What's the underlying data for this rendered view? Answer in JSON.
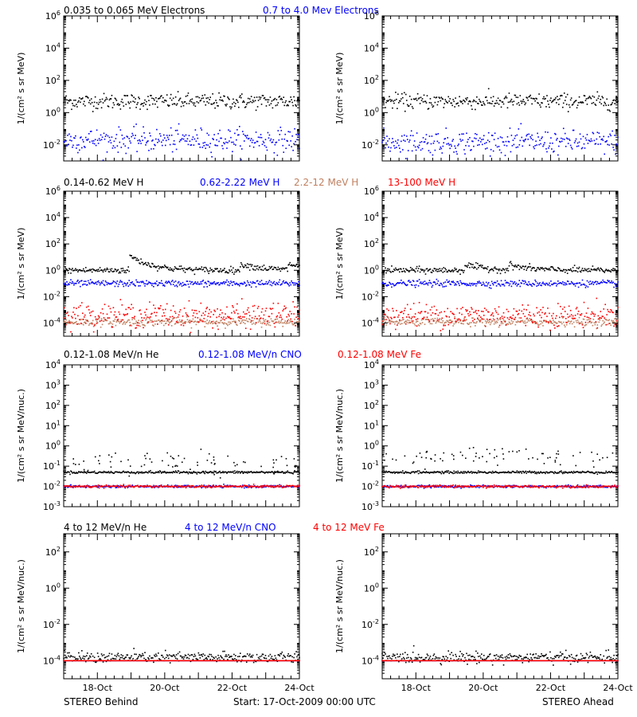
{
  "colors": {
    "black": "#000000",
    "blue": "#0000ff",
    "red": "#ff0000",
    "brown": "#c08060"
  },
  "footer": {
    "left": "STEREO Behind",
    "center": "Start: 17-Oct-2009 00:00 UTC",
    "right": "STEREO Ahead"
  },
  "x_axis": {
    "range_days": [
      0,
      7
    ],
    "tick_labels": [
      "18-Oct",
      "20-Oct",
      "22-Oct",
      "24-Oct"
    ],
    "tick_days": [
      1,
      3,
      5,
      7
    ]
  },
  "rows": [
    {
      "ylabel": "1/(cm² s sr MeV)",
      "title_segments": [
        {
          "text": "0.035 to 0.065 MeV Electrons",
          "color": "#000000"
        },
        {
          "text": "0.7 to 4.0 Mev Electrons",
          "color": "#0000ff"
        }
      ]
    },
    {
      "ylabel": "1/(cm² s sr MeV)",
      "title_segments": [
        {
          "text": "0.14-0.62 MeV H",
          "color": "#000000"
        },
        {
          "text": "0.62-2.22 MeV H",
          "color": "#0000ff"
        },
        {
          "text": "2.2-12 MeV H",
          "color": "#c08060"
        },
        {
          "text": "13-100 MeV H",
          "color": "#ff0000"
        }
      ]
    },
    {
      "ylabel": "1/(cm² s sr MeV/nuc.)",
      "title_segments": [
        {
          "text": "0.12-1.08 MeV/n He",
          "color": "#000000"
        },
        {
          "text": "0.12-1.08 MeV/n CNO",
          "color": "#0000ff"
        },
        {
          "text": "0.12-1.08 MeV Fe",
          "color": "#ff0000"
        }
      ]
    },
    {
      "ylabel": "1/(cm² s sr MeV/nuc.)",
      "title_segments": [
        {
          "text": "4 to 12 MeV/n He",
          "color": "#000000"
        },
        {
          "text": "4 to 12 MeV/n CNO",
          "color": "#0000ff"
        },
        {
          "text": "4 to 12 MeV Fe",
          "color": "#ff0000"
        }
      ]
    }
  ],
  "chart_data": [
    {
      "type": "scatter",
      "row": 0,
      "col": "left",
      "yscale": "log",
      "ylim": [
        0.001,
        1000000.0
      ],
      "y_ticks": [
        0.01,
        1.0,
        100.0,
        10000.0,
        1000000.0
      ],
      "series": [
        {
          "name": "0.035 to 0.065 MeV Electrons",
          "color": "#000000",
          "level": 5,
          "spread": 0.08
        },
        {
          "name": "0.7 to 4.0 Mev Electrons",
          "color": "#0000ff",
          "level": 0.02,
          "spread": 0.12
        }
      ]
    },
    {
      "type": "scatter",
      "row": 0,
      "col": "right",
      "yscale": "log",
      "ylim": [
        0.001,
        1000000.0
      ],
      "y_ticks": [
        0.01,
        1.0,
        100.0,
        10000.0,
        1000000.0
      ],
      "series": [
        {
          "name": "0.035 to 0.065 MeV Electrons",
          "color": "#000000",
          "level": 5,
          "spread": 0.08
        },
        {
          "name": "0.7 to 4.0 Mev Electrons",
          "color": "#0000ff",
          "level": 0.015,
          "spread": 0.12
        }
      ]
    },
    {
      "type": "scatter",
      "row": 1,
      "col": "left",
      "yscale": "log",
      "ylim": [
        1e-05,
        1000000.0
      ],
      "y_ticks": [
        0.0001,
        0.01,
        1.0,
        100.0,
        10000.0,
        1000000.0
      ],
      "series": [
        {
          "name": "0.14-0.62 MeV H",
          "color": "#000000",
          "level": 1,
          "spread": 0.04,
          "events": [
            {
              "day": 2.0,
              "peak": 12
            },
            {
              "day": 2.2,
              "peak": 6
            },
            {
              "day": 5.3,
              "peak": 3
            },
            {
              "day": 6.7,
              "peak": 3
            }
          ]
        },
        {
          "name": "0.62-2.22 MeV H",
          "color": "#0000ff",
          "level": 0.1,
          "spread": 0.04
        },
        {
          "name": "2.2-12 MeV H",
          "color": "#c08060",
          "level": 0.00012,
          "spread": 0.05
        },
        {
          "name": "13-100 MeV H",
          "color": "#ff0000",
          "level": 0.0004,
          "spread": 0.15
        }
      ]
    },
    {
      "type": "scatter",
      "row": 1,
      "col": "right",
      "yscale": "log",
      "ylim": [
        1e-05,
        1000000.0
      ],
      "y_ticks": [
        0.0001,
        0.01,
        1.0,
        100.0,
        10000.0,
        1000000.0
      ],
      "series": [
        {
          "name": "0.14-0.62 MeV H",
          "color": "#000000",
          "level": 1,
          "spread": 0.04,
          "events": [
            {
              "day": 2.5,
              "peak": 2.5
            },
            {
              "day": 3.8,
              "peak": 2.5
            }
          ]
        },
        {
          "name": "0.62-2.22 MeV H",
          "color": "#0000ff",
          "level": 0.1,
          "spread": 0.04
        },
        {
          "name": "2.2-12 MeV H",
          "color": "#c08060",
          "level": 0.00012,
          "spread": 0.05
        },
        {
          "name": "13-100 MeV H",
          "color": "#ff0000",
          "level": 0.0004,
          "spread": 0.15
        }
      ]
    },
    {
      "type": "scatter",
      "row": 2,
      "col": "left",
      "yscale": "log",
      "ylim": [
        0.001,
        10000.0
      ],
      "y_ticks": [
        0.001,
        0.01,
        0.1,
        1.0,
        10.0,
        100.0,
        1000.0,
        10000.0
      ],
      "series": [
        {
          "name": "0.12-1.08 MeV/n He",
          "color": "#000000",
          "level": 0.05,
          "spread": 0.01,
          "sparse_upper": 0.15
        },
        {
          "name": "0.12-1.08 MeV/n CNO",
          "color": "#0000ff",
          "level": 0.01,
          "spread": 0.01
        },
        {
          "name": "0.12-1.08 MeV Fe",
          "color": "#ff0000",
          "level": 0.01,
          "spread": 0.01
        }
      ]
    },
    {
      "type": "scatter",
      "row": 2,
      "col": "right",
      "yscale": "log",
      "ylim": [
        0.001,
        10000.0
      ],
      "y_ticks": [
        0.001,
        0.01,
        0.1,
        1.0,
        10.0,
        100.0,
        1000.0,
        10000.0
      ],
      "series": [
        {
          "name": "0.12-1.08 MeV/n He",
          "color": "#000000",
          "level": 0.05,
          "spread": 0.01,
          "sparse_upper": 0.3
        },
        {
          "name": "0.12-1.08 MeV/n CNO",
          "color": "#0000ff",
          "level": 0.01,
          "spread": 0.01
        },
        {
          "name": "0.12-1.08 MeV Fe",
          "color": "#ff0000",
          "level": 0.01,
          "spread": 0.01
        }
      ]
    },
    {
      "type": "scatter",
      "row": 3,
      "col": "left",
      "yscale": "log",
      "ylim": [
        1e-05,
        1000.0
      ],
      "y_ticks": [
        0.0001,
        0.01,
        1.0,
        100.0
      ],
      "series": [
        {
          "name": "4 to 12 MeV/n He",
          "color": "#000000",
          "level": 0.00015,
          "spread": 0.05
        },
        {
          "name": "4 to 12 MeV/n CNO",
          "color": "#0000ff",
          "level": 0.0001,
          "spread": 0.0
        },
        {
          "name": "4 to 12 MeV Fe",
          "color": "#ff0000",
          "level": 0.0001,
          "spread": 0.0
        }
      ]
    },
    {
      "type": "scatter",
      "row": 3,
      "col": "right",
      "yscale": "log",
      "ylim": [
        1e-05,
        1000.0
      ],
      "y_ticks": [
        0.0001,
        0.01,
        1.0,
        100.0
      ],
      "series": [
        {
          "name": "4 to 12 MeV/n He",
          "color": "#000000",
          "level": 0.00015,
          "spread": 0.05
        },
        {
          "name": "4 to 12 MeV/n CNO",
          "color": "#0000ff",
          "level": 0.0001,
          "spread": 0.0
        },
        {
          "name": "4 to 12 MeV Fe",
          "color": "#ff0000",
          "level": 0.0001,
          "spread": 0.0
        }
      ]
    }
  ]
}
